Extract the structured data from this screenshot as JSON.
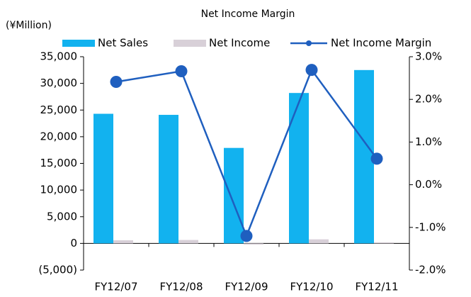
{
  "chart_data": {
    "type": "bar",
    "title": "Net Income Margin",
    "y_label": "(¥Million)",
    "categories": [
      "FY12/07",
      "FY12/08",
      "FY12/09",
      "FY12/10",
      "FY12/11"
    ],
    "series": [
      {
        "name": "Net Sales",
        "color": "#12b2ef",
        "type": "bar",
        "values": [
          24300,
          24100,
          17900,
          28200,
          32500
        ]
      },
      {
        "name": "Net Income",
        "color": "#d8d0d8",
        "type": "bar",
        "values": [
          590,
          640,
          -210,
          760,
          200
        ]
      },
      {
        "name": "Net Income Margin",
        "color": "#1f5fbf",
        "type": "line",
        "axis": "y2",
        "values": [
          2.41,
          2.66,
          -1.2,
          2.69,
          0.61
        ]
      }
    ],
    "ylim": [
      -5000,
      35000
    ],
    "yticks": [
      {
        "value": -5000,
        "label": "(5,000)"
      },
      0,
      {
        "value": 5000,
        "label": "5,000"
      },
      {
        "value": 10000,
        "label": "10,000"
      },
      {
        "value": 15000,
        "label": "15,000"
      },
      {
        "value": 20000,
        "label": "20,000"
      },
      {
        "value": 25000,
        "label": "25,000"
      },
      {
        "value": 30000,
        "label": "30,000"
      },
      {
        "value": 35000,
        "label": "35,000"
      }
    ],
    "y2lim": [
      -2,
      3
    ],
    "y2ticks": [
      {
        "value": -2,
        "label": "-2.0%"
      },
      {
        "value": -1,
        "label": "-1.0%"
      },
      {
        "value": 0,
        "label": "0.0%"
      },
      {
        "value": 1,
        "label": "1.0%"
      },
      {
        "value": 2,
        "label": "2.0%"
      },
      {
        "value": 3,
        "label": "3.0%"
      }
    ],
    "grid": false,
    "legend": "top"
  }
}
